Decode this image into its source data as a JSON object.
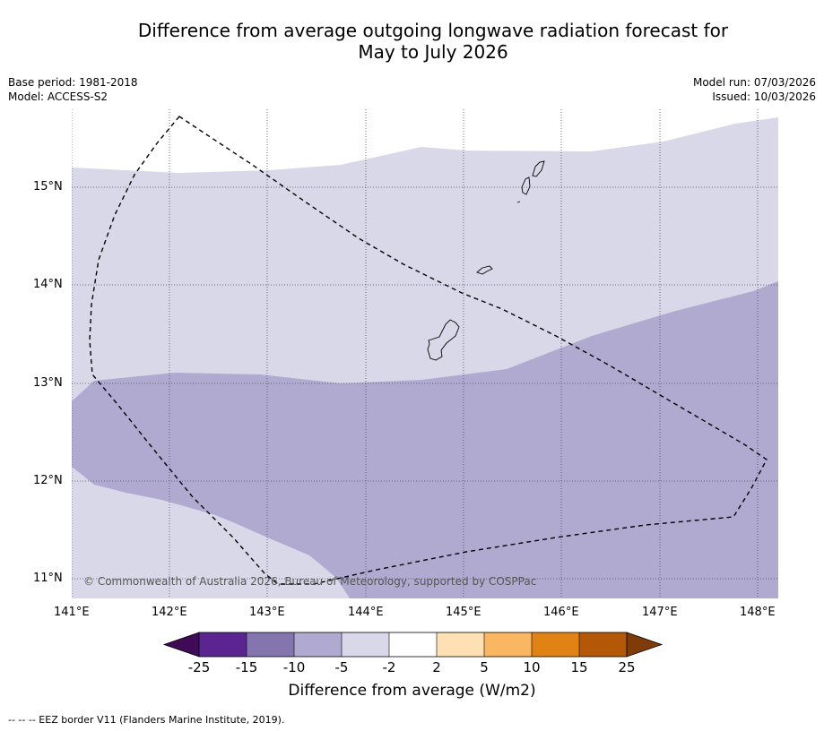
{
  "title": {
    "line1": "Difference from average outgoing longwave radiation forecast for",
    "line2": "May to July 2026"
  },
  "meta": {
    "base_period": "Base period: 1981-2018",
    "model": "Model: ACCESS-S2",
    "model_run": "Model run: 07/03/2026",
    "issued": "Issued: 10/03/2026"
  },
  "axes": {
    "lon_labels": [
      "141°E",
      "142°E",
      "143°E",
      "144°E",
      "145°E",
      "146°E",
      "147°E",
      "148°E"
    ],
    "lat_labels": [
      "15°N",
      "14°N",
      "13°N",
      "12°N",
      "11°N"
    ]
  },
  "map": {
    "lon_range": [
      141.0,
      148.2
    ],
    "lat_range": [
      10.8,
      15.7
    ],
    "regions": [
      {
        "class": "-5 to -2",
        "color": "#d8d8e9"
      },
      {
        "class": "-10 to -5",
        "color": "#b0aad1"
      }
    ],
    "copyright": "© Commonwealth of Australia 2026, Bureau of Meteorology, supported by COSPPac"
  },
  "colorbar": {
    "ticks": [
      "-25",
      "-15",
      "-10",
      "-5",
      "-2",
      "2",
      "5",
      "10",
      "15",
      "25"
    ],
    "colors": [
      "#5b2591",
      "#8475af",
      "#b0aad1",
      "#d8d8e9",
      "#ffffff",
      "#fde0b4",
      "#fbb661",
      "#e18214",
      "#b35806"
    ],
    "under_color": "#3f0a56",
    "over_color": "#7f3b08",
    "title": "Difference from average (W/m2)"
  },
  "footnote": "--  --  -- EEZ border V11 (Flanders Marine Institute, 2019)."
}
